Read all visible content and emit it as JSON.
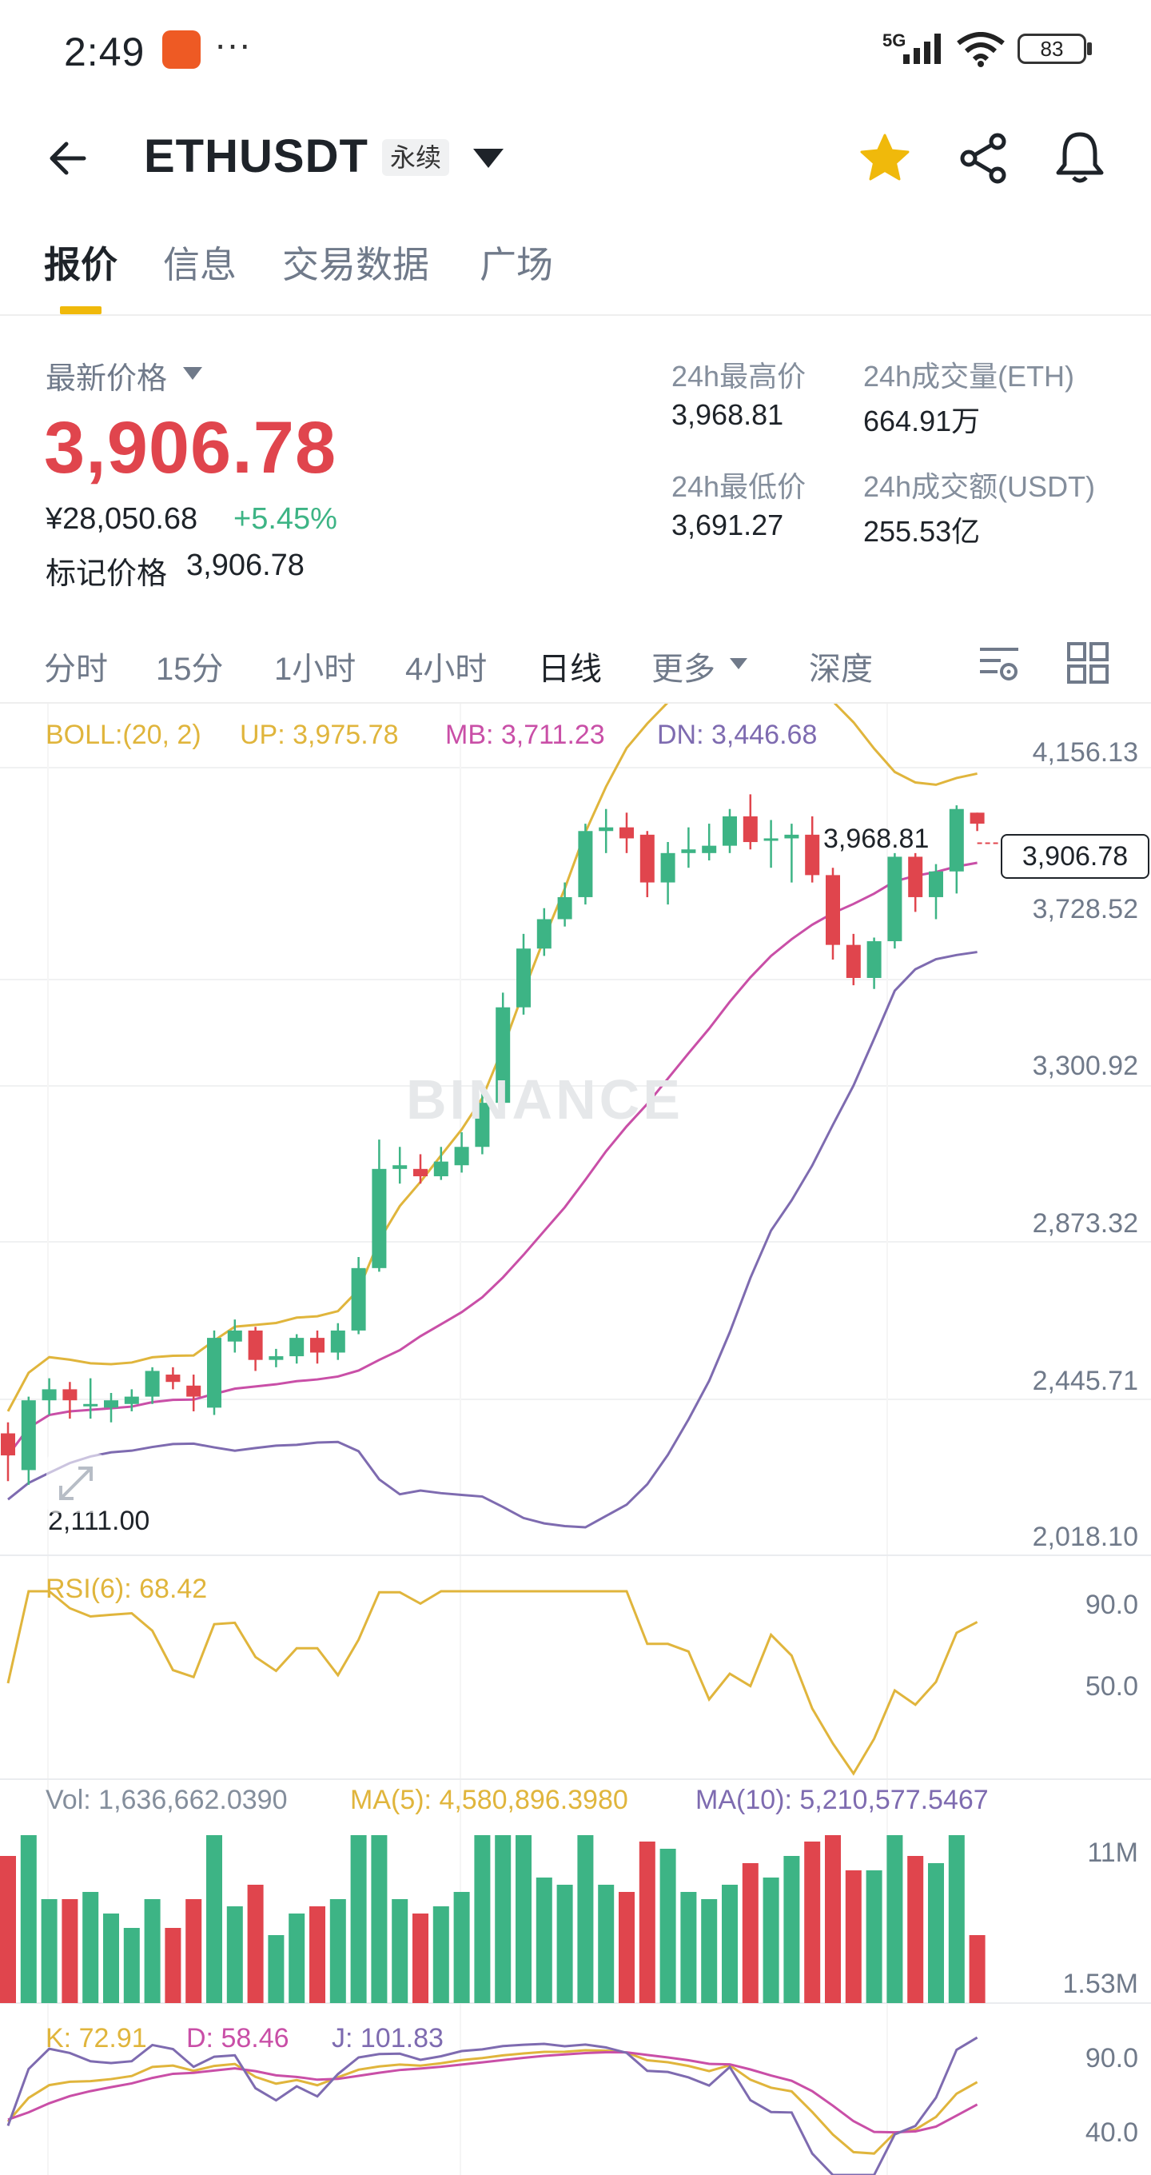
{
  "status": {
    "time": "2:49",
    "dots": "···",
    "network": "5G",
    "battery": "83"
  },
  "header": {
    "pair": "ETHUSDT",
    "badge": "永续"
  },
  "tabs": [
    {
      "label": "报价",
      "active": true
    },
    {
      "label": "信息"
    },
    {
      "label": "交易数据"
    },
    {
      "label": "广场"
    }
  ],
  "price": {
    "latest_label": "最新价格",
    "last": "3,906.78",
    "cny": "¥28,050.68",
    "change": "+5.45%",
    "mark_label": "标记价格",
    "mark": "3,906.78",
    "stats": [
      {
        "label": "24h最高价",
        "value": "3,968.81"
      },
      {
        "label": "24h成交量(ETH)",
        "value": "664.91万"
      },
      {
        "label": "24h最低价",
        "value": "3,691.27"
      },
      {
        "label": "24h成交额(USDT)",
        "value": "255.53亿"
      }
    ]
  },
  "intervals": [
    "分时",
    "15分",
    "1小时",
    "4小时",
    "日线",
    "更多",
    "深度"
  ],
  "active_interval": "日线",
  "colors": {
    "up": "#3db485",
    "down": "#e0454d",
    "accent": "#f0b90b",
    "boll_up": "#e0b53c",
    "boll_mb": "#c94fa7",
    "boll_dn": "#7e6bb0"
  },
  "chart_data": {
    "type": "candlestick",
    "boll_legend": {
      "params": "BOLL:(20, 2)",
      "up": "UP: 3,975.78",
      "mb": "MB: 3,711.23",
      "dn": "DN: 3,446.68"
    },
    "price_axis": [
      "4,156.13",
      "3,728.52",
      "3,300.92",
      "2,873.32",
      "2,445.71",
      "2,018.10"
    ],
    "price_range": [
      2018.1,
      4156.13
    ],
    "last_price_tag": "3,906.78",
    "high_note": "3,968.81",
    "low_note": "2,111.00",
    "watermark": "BINANCE",
    "candles": [
      [
        2300,
        2240,
        2330,
        2170
      ],
      [
        2200,
        2390,
        2400,
        2160
      ],
      [
        2390,
        2420,
        2450,
        2350
      ],
      [
        2420,
        2390,
        2440,
        2340
      ],
      [
        2380,
        2380,
        2450,
        2340
      ],
      [
        2370,
        2390,
        2410,
        2330
      ],
      [
        2380,
        2400,
        2420,
        2360
      ],
      [
        2400,
        2470,
        2480,
        2380
      ],
      [
        2460,
        2440,
        2480,
        2420
      ],
      [
        2430,
        2400,
        2460,
        2360
      ],
      [
        2370,
        2560,
        2580,
        2350
      ],
      [
        2550,
        2580,
        2610,
        2520
      ],
      [
        2580,
        2500,
        2590,
        2470
      ],
      [
        2500,
        2510,
        2530,
        2480
      ],
      [
        2510,
        2560,
        2570,
        2490
      ],
      [
        2560,
        2520,
        2580,
        2490
      ],
      [
        2520,
        2580,
        2600,
        2500
      ],
      [
        2580,
        2750,
        2780,
        2570
      ],
      [
        2750,
        3020,
        3100,
        2740
      ],
      [
        3020,
        3030,
        3080,
        2980
      ],
      [
        3020,
        3000,
        3060,
        2980
      ],
      [
        3000,
        3040,
        3080,
        2990
      ],
      [
        3030,
        3080,
        3120,
        3010
      ],
      [
        3080,
        3200,
        3250,
        3060
      ],
      [
        3200,
        3460,
        3500,
        3190
      ],
      [
        3460,
        3620,
        3660,
        3440
      ],
      [
        3620,
        3700,
        3730,
        3600
      ],
      [
        3700,
        3760,
        3800,
        3680
      ],
      [
        3760,
        3940,
        3960,
        3740
      ],
      [
        3940,
        3950,
        4000,
        3880
      ],
      [
        3950,
        3920,
        3990,
        3880
      ],
      [
        3930,
        3800,
        3940,
        3760
      ],
      [
        3800,
        3880,
        3910,
        3740
      ],
      [
        3880,
        3890,
        3950,
        3840
      ],
      [
        3880,
        3900,
        3960,
        3860
      ],
      [
        3900,
        3980,
        4000,
        3880
      ],
      [
        3980,
        3910,
        4040,
        3890
      ],
      [
        3920,
        3920,
        3970,
        3840
      ],
      [
        3920,
        3930,
        3960,
        3800
      ],
      [
        3930,
        3820,
        3980,
        3800
      ],
      [
        3820,
        3630,
        3840,
        3590
      ],
      [
        3630,
        3540,
        3660,
        3520
      ],
      [
        3540,
        3640,
        3650,
        3510
      ],
      [
        3640,
        3870,
        3880,
        3620
      ],
      [
        3870,
        3760,
        3880,
        3720
      ],
      [
        3760,
        3830,
        3850,
        3700
      ],
      [
        3830,
        4000,
        4010,
        3770
      ],
      [
        3990,
        3960,
        3990,
        3940
      ]
    ],
    "rsi_legend": "RSI(6): 68.42",
    "rsi_axis": [
      "90.0",
      "50.0"
    ],
    "vol_legend": {
      "vol": "Vol: 1,636,662.0390",
      "ma5": "MA(5): 4,580,896.3980",
      "ma10": "MA(10): 5,210,577.5467"
    },
    "vol_axis": [
      "11M",
      "1.53M"
    ],
    "kdj_legend": {
      "k": "K: 72.91",
      "d": "D: 58.46",
      "j": "J: 101.83"
    },
    "kdj_axis": [
      "90.0",
      "40.0"
    ]
  }
}
